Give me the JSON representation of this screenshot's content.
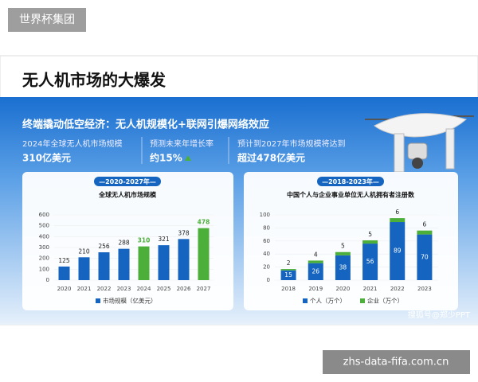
{
  "watermark": "世界杯集团",
  "footer_site": "zhs-data-fifa.com.cn",
  "source_mark": "搜狐号@郑少PPT",
  "title": "无人机市场的大爆发",
  "subtitle": "终端撬动低空经济：无人机规模化+联网引爆网络效应",
  "stats": [
    {
      "label": "2024年全球无人机市场规模",
      "value": "310亿美元"
    },
    {
      "label": "预测未来年增长率",
      "value": "约15%"
    },
    {
      "label": "预计到2027年市场规模将达到",
      "value": "超过478亿美元"
    }
  ],
  "chart_data": [
    {
      "type": "bar",
      "period": "—2020-2027年—",
      "title": "全球无人机市场规模",
      "categories": [
        "2020",
        "2021",
        "2022",
        "2023",
        "2024",
        "2025",
        "2026",
        "2027"
      ],
      "series": [
        {
          "name": "市场规模（亿美元）",
          "color": "#1565c0",
          "values": [
            125,
            210,
            256,
            288,
            310,
            321,
            378,
            478
          ],
          "colors": [
            "#1565c0",
            "#1565c0",
            "#1565c0",
            "#1565c0",
            "#4caf3a",
            "#1565c0",
            "#1565c0",
            "#4caf3a"
          ]
        }
      ],
      "ylim": [
        0,
        600
      ],
      "yticks": [
        0,
        100,
        200,
        300,
        400,
        500,
        600
      ]
    },
    {
      "type": "stacked_bar",
      "period": "—2018-2023年—",
      "title": "中国个人与企业事业单位无人机拥有者注册数",
      "categories": [
        "2018",
        "2019",
        "2020",
        "2021",
        "2022",
        "2023"
      ],
      "series": [
        {
          "name": "个人（万个）",
          "color": "#1565c0",
          "values": [
            15,
            26,
            38,
            56,
            89,
            70
          ]
        },
        {
          "name": "企业（万个）",
          "color": "#4caf3a",
          "values": [
            2,
            4,
            5,
            5,
            6,
            6
          ]
        }
      ],
      "ylim": [
        0,
        100
      ],
      "yticks": [
        0,
        20,
        40,
        60,
        80,
        100
      ]
    }
  ]
}
